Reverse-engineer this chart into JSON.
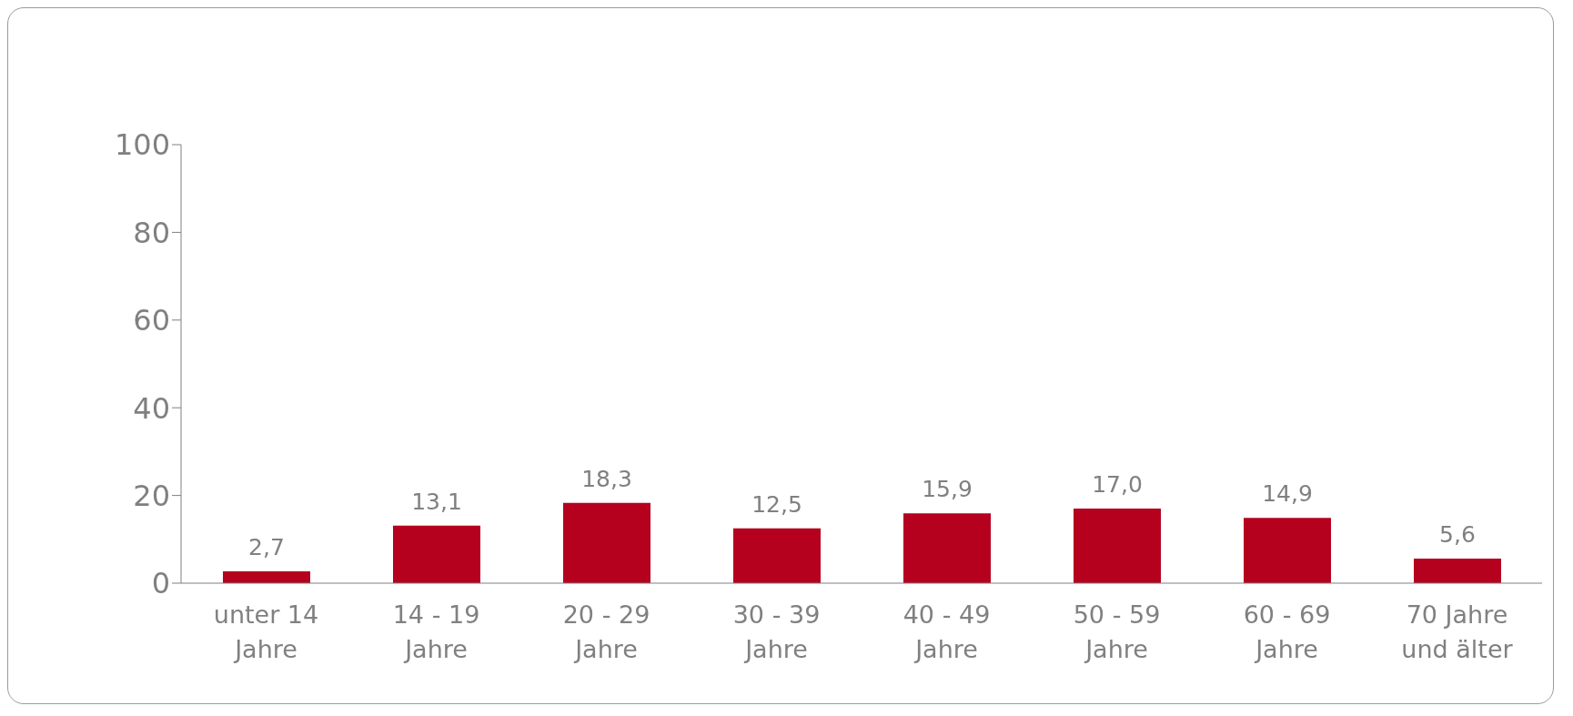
{
  "chart_data": {
    "type": "bar",
    "categories": [
      "unter 14 Jahre",
      "14 - 19 Jahre",
      "20 - 29 Jahre",
      "30 - 39 Jahre",
      "40 - 49 Jahre",
      "50 - 59 Jahre",
      "60 - 69 Jahre",
      "70 Jahre und älter"
    ],
    "values": [
      2.7,
      13.1,
      18.3,
      12.5,
      15.9,
      17.0,
      14.9,
      5.6
    ],
    "value_labels": [
      "2,7",
      "13,1",
      "18,3",
      "12,5",
      "15,9",
      "17,0",
      "14,9",
      "5,6"
    ],
    "color": "#b5001e",
    "ylim": [
      0,
      100
    ],
    "yticks": [
      0,
      20,
      40,
      60,
      80,
      100
    ],
    "grid": false,
    "legend": false
  }
}
